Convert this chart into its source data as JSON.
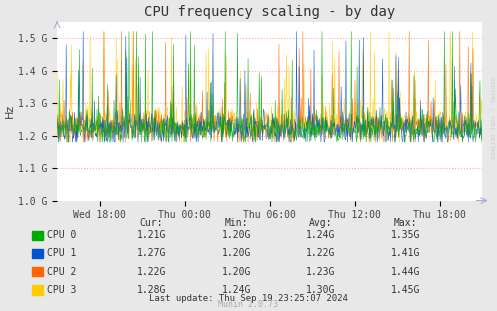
{
  "title": "CPU frequency scaling - by day",
  "ylabel": "Hz",
  "background_color": "#e8e8e8",
  "plot_bg_color": "#ffffff",
  "grid_color": "#ffaaaa",
  "grid_linestyle": ":",
  "cpu_colors": [
    "#00aa00",
    "#0055cc",
    "#ff6600",
    "#ffcc00"
  ],
  "cpu_labels": [
    "CPU 0",
    "CPU 1",
    "CPU 2",
    "CPU 3"
  ],
  "yticks": [
    1.0,
    1.1,
    1.2,
    1.3,
    1.4,
    1.5
  ],
  "ytick_labels": [
    "1.0 G",
    "1.1 G",
    "1.2 G",
    "1.3 G",
    "1.4 G",
    "1.5 G"
  ],
  "ylim": [
    1000000000.0,
    1550000000.0
  ],
  "xtick_labels": [
    "Wed 18:00",
    "Thu 00:00",
    "Thu 06:00",
    "Thu 12:00",
    "Thu 18:00"
  ],
  "cur_values": [
    "1.21G",
    "1.27G",
    "1.22G",
    "1.28G"
  ],
  "min_values": [
    "1.20G",
    "1.20G",
    "1.20G",
    "1.24G"
  ],
  "avg_values": [
    "1.24G",
    "1.22G",
    "1.23G",
    "1.30G"
  ],
  "max_values": [
    "1.35G",
    "1.41G",
    "1.44G",
    "1.45G"
  ],
  "last_update": "Last update: Thu Sep 19 23:25:07 2024",
  "munin_version": "Munin 2.0.73",
  "rrdtool_label": "RRDTOOL / TOBI OETIKER",
  "n_points": 800,
  "base_freq": 1220000000.0,
  "noise_scale": 25000000.0,
  "spike_prob": 0.08,
  "spike_scale": 120000000.0
}
